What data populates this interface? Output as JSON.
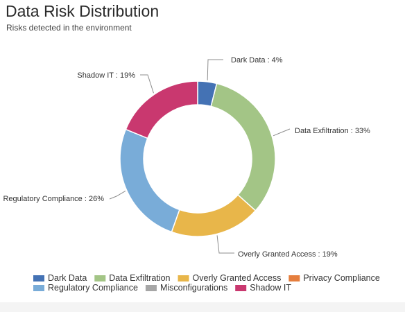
{
  "header": {
    "title": "Data Risk Distribution",
    "subtitle": "Risks detected in the environment"
  },
  "chart_data": {
    "type": "pie",
    "donut": true,
    "title": "Data Risk Distribution",
    "subtitle": "Risks detected in the environment",
    "legend_position": "bottom",
    "categories": [
      "Dark Data",
      "Data Exfiltration",
      "Overly Granted Access",
      "Privacy Compliance",
      "Regulatory Compliance",
      "Misconfigurations",
      "Shadow IT"
    ],
    "values": [
      4,
      33,
      19,
      0,
      26,
      0,
      19
    ],
    "colors": [
      "#4472b4",
      "#a3c586",
      "#e8b64a",
      "#e57e3e",
      "#79acd8",
      "#a6a6a6",
      "#c9386f"
    ],
    "slice_labels": [
      "Dark Data : 4%",
      "Data Exfiltration : 33%",
      "Overly Granted Access : 19%",
      "",
      "Regulatory Compliance : 26%",
      "",
      "Shadow IT : 19%"
    ]
  }
}
